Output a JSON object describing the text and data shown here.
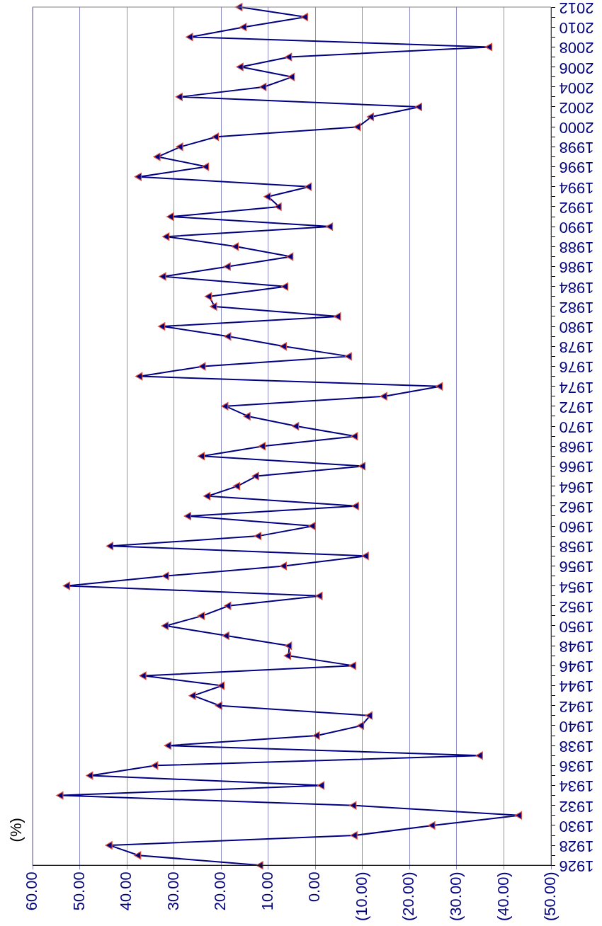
{
  "chart_data": {
    "type": "line",
    "ylabel": "(%)",
    "categories": [
      "2012",
      null,
      "2010",
      null,
      "2008",
      null,
      "2006",
      null,
      "2004",
      null,
      "2002",
      null,
      "2000",
      null,
      "1998",
      null,
      "1996",
      null,
      "1994",
      null,
      "1992",
      null,
      "1990",
      null,
      "1988",
      null,
      "1986",
      null,
      "1984",
      null,
      "1982",
      null,
      "1980",
      null,
      "1978",
      null,
      "1976",
      null,
      "1974",
      null,
      "1972",
      null,
      "1970",
      null,
      "1968",
      null,
      "1966",
      null,
      "1964",
      null,
      "1962",
      null,
      "1960",
      null,
      "1958",
      null,
      "1956",
      null,
      "1954",
      null,
      "1952",
      null,
      "1950",
      null,
      "1948",
      null,
      "1946",
      null,
      "1944",
      null,
      "1942",
      null,
      "1940",
      null,
      "1938",
      null,
      "1936",
      null,
      "1934",
      null,
      "1932",
      null,
      "1930",
      null,
      "1928",
      null,
      "1926"
    ],
    "series": [
      {
        "color": "#000080",
        "values": [
          16.0,
          2.1,
          15.1,
          26.5,
          -37.0,
          5.5,
          15.8,
          4.9,
          10.9,
          28.7,
          -22.1,
          -11.9,
          -9.1,
          21.0,
          28.6,
          33.4,
          23.1,
          37.4,
          1.3,
          10.0,
          7.7,
          30.6,
          -3.2,
          31.5,
          16.8,
          5.2,
          18.5,
          32.2,
          6.3,
          22.5,
          21.4,
          -4.9,
          32.4,
          18.4,
          6.6,
          -7.2,
          23.8,
          37.2,
          -26.5,
          -14.7,
          19.0,
          14.3,
          4.0,
          -8.5,
          11.1,
          24.0,
          -10.1,
          12.5,
          16.5,
          22.8,
          -8.7,
          26.9,
          0.5,
          12.0,
          43.4,
          -10.8,
          6.6,
          31.6,
          52.6,
          -1.0,
          18.4,
          24.0,
          31.7,
          18.8,
          5.5,
          5.7,
          -8.1,
          36.4,
          19.8,
          25.9,
          20.3,
          -11.6,
          -9.8,
          -0.4,
          31.1,
          -35.0,
          33.9,
          47.7,
          -1.4,
          54.0,
          -8.2,
          -43.3,
          -24.9,
          -8.4,
          43.6,
          37.5,
          11.6
        ]
      }
    ],
    "orientation": "horizontal",
    "xlim": [
      60,
      -50
    ],
    "xticks": [
      {
        "value": 60,
        "label": "60.00"
      },
      {
        "value": 50,
        "label": "50.00"
      },
      {
        "value": 40,
        "label": "40.00"
      },
      {
        "value": 30,
        "label": "30.00"
      },
      {
        "value": 20,
        "label": "20.00"
      },
      {
        "value": 10,
        "label": "10.00"
      },
      {
        "value": 0,
        "label": "0.00"
      },
      {
        "value": -10,
        "label": "(10.00)"
      },
      {
        "value": -20,
        "label": "(20.00)"
      },
      {
        "value": -30,
        "label": "(30.00)"
      },
      {
        "value": -40,
        "label": "(40.00)"
      },
      {
        "value": -50,
        "label": "(50.00)"
      }
    ],
    "grid": "x",
    "legend": false,
    "marker": "triangle",
    "line_style": "solid"
  }
}
